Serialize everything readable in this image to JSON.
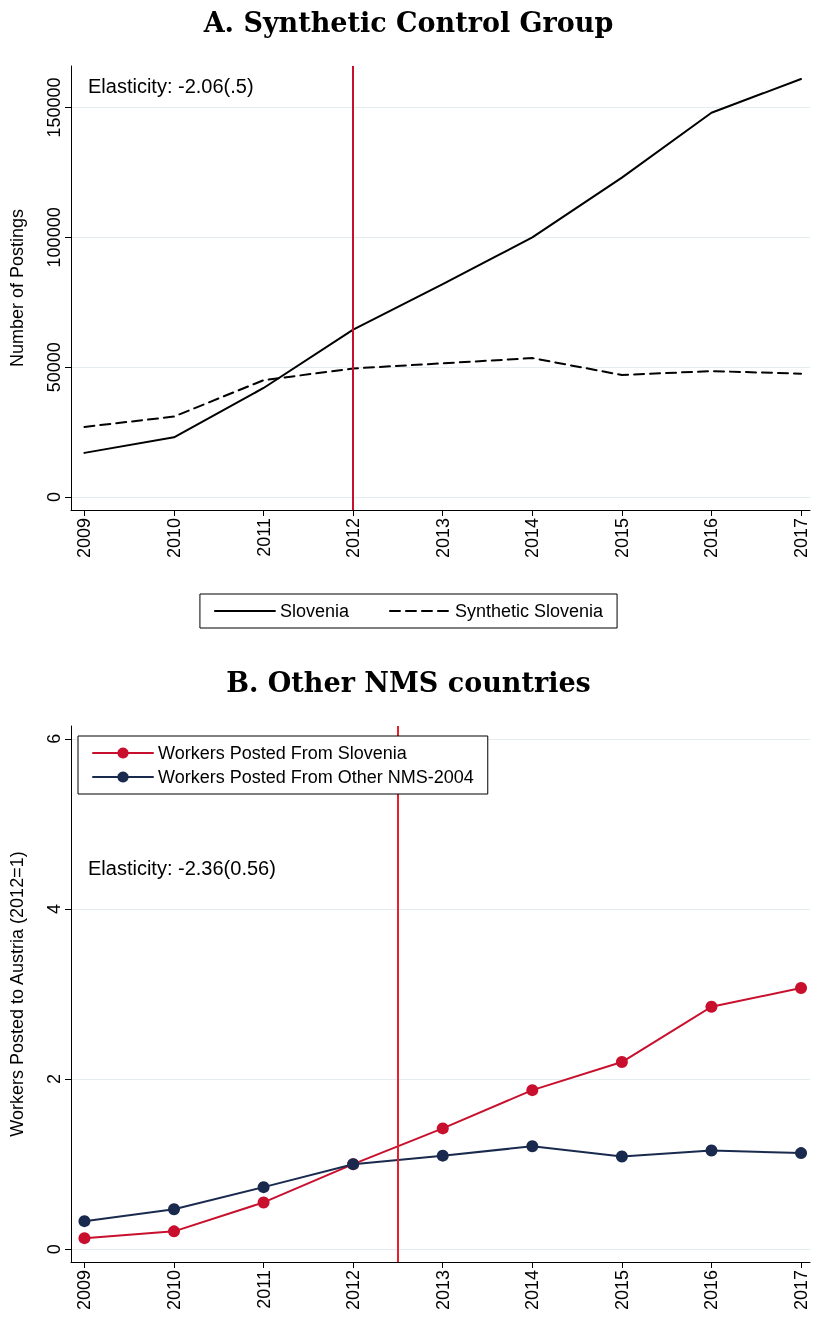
{
  "chart_data": [
    {
      "type": "line",
      "title": "A. Synthetic Control Group",
      "ylabel": "Number of Postings",
      "annotations": [
        "Elasticity: -2.06(.5)"
      ],
      "x": [
        2009,
        2010,
        2011,
        2012,
        2013,
        2014,
        2015,
        2016,
        2017
      ],
      "series": [
        {
          "name": "Slovenia",
          "color": "#000000",
          "line_style": "solid",
          "values": [
            17000,
            23000,
            42000,
            64500,
            82000,
            100000,
            123000,
            148000,
            161000
          ]
        },
        {
          "name": "Synthetic Slovenia",
          "color": "#000000",
          "line_style": "dashed",
          "values": [
            27000,
            31000,
            45000,
            49500,
            51500,
            53500,
            47000,
            48500,
            47500
          ]
        }
      ],
      "xlim": [
        2008.85,
        2017.1
      ],
      "xticks": [
        2009,
        2010,
        2011,
        2012,
        2013,
        2014,
        2015,
        2016,
        2017
      ],
      "ylim": [
        -5000,
        166000
      ],
      "yticks": [
        0,
        50000,
        100000,
        150000
      ],
      "ref_lines": [
        {
          "axis": "x",
          "value": 2012,
          "color": "#c8102e"
        }
      ],
      "grid": "y",
      "legend": "bottom",
      "marker": "none"
    },
    {
      "type": "line",
      "title": "B. Other NMS countries",
      "ylabel": "Workers Posted to Austria (2012=1)",
      "annotations": [
        "Elasticity: -2.36(0.56)"
      ],
      "x": [
        2009,
        2010,
        2011,
        2012,
        2013,
        2014,
        2015,
        2016,
        2017
      ],
      "series": [
        {
          "name": "Workers Posted From Slovenia",
          "color": "#c8102e",
          "values": [
            0.13,
            0.21,
            0.55,
            1,
            1.42,
            1.87,
            2.2,
            2.85,
            3.07
          ]
        },
        {
          "name": "Workers Posted From Other NMS-2004",
          "color": "#1a2a4e",
          "values": [
            0.33,
            0.47,
            0.73,
            1,
            1.1,
            1.21,
            1.09,
            1.16,
            1.13
          ]
        }
      ],
      "xlim": [
        2008.85,
        2017.1
      ],
      "xticks": [
        2009,
        2010,
        2011,
        2012,
        2013,
        2014,
        2015,
        2016,
        2017
      ],
      "ylim": [
        -0.15,
        6.15
      ],
      "yticks": [
        0,
        2,
        4,
        6
      ],
      "ref_lines": [
        {
          "axis": "x",
          "value": 2012.5,
          "color": "#e8202a"
        }
      ],
      "grid": "y",
      "legend": "top left",
      "marker": "circle"
    }
  ]
}
